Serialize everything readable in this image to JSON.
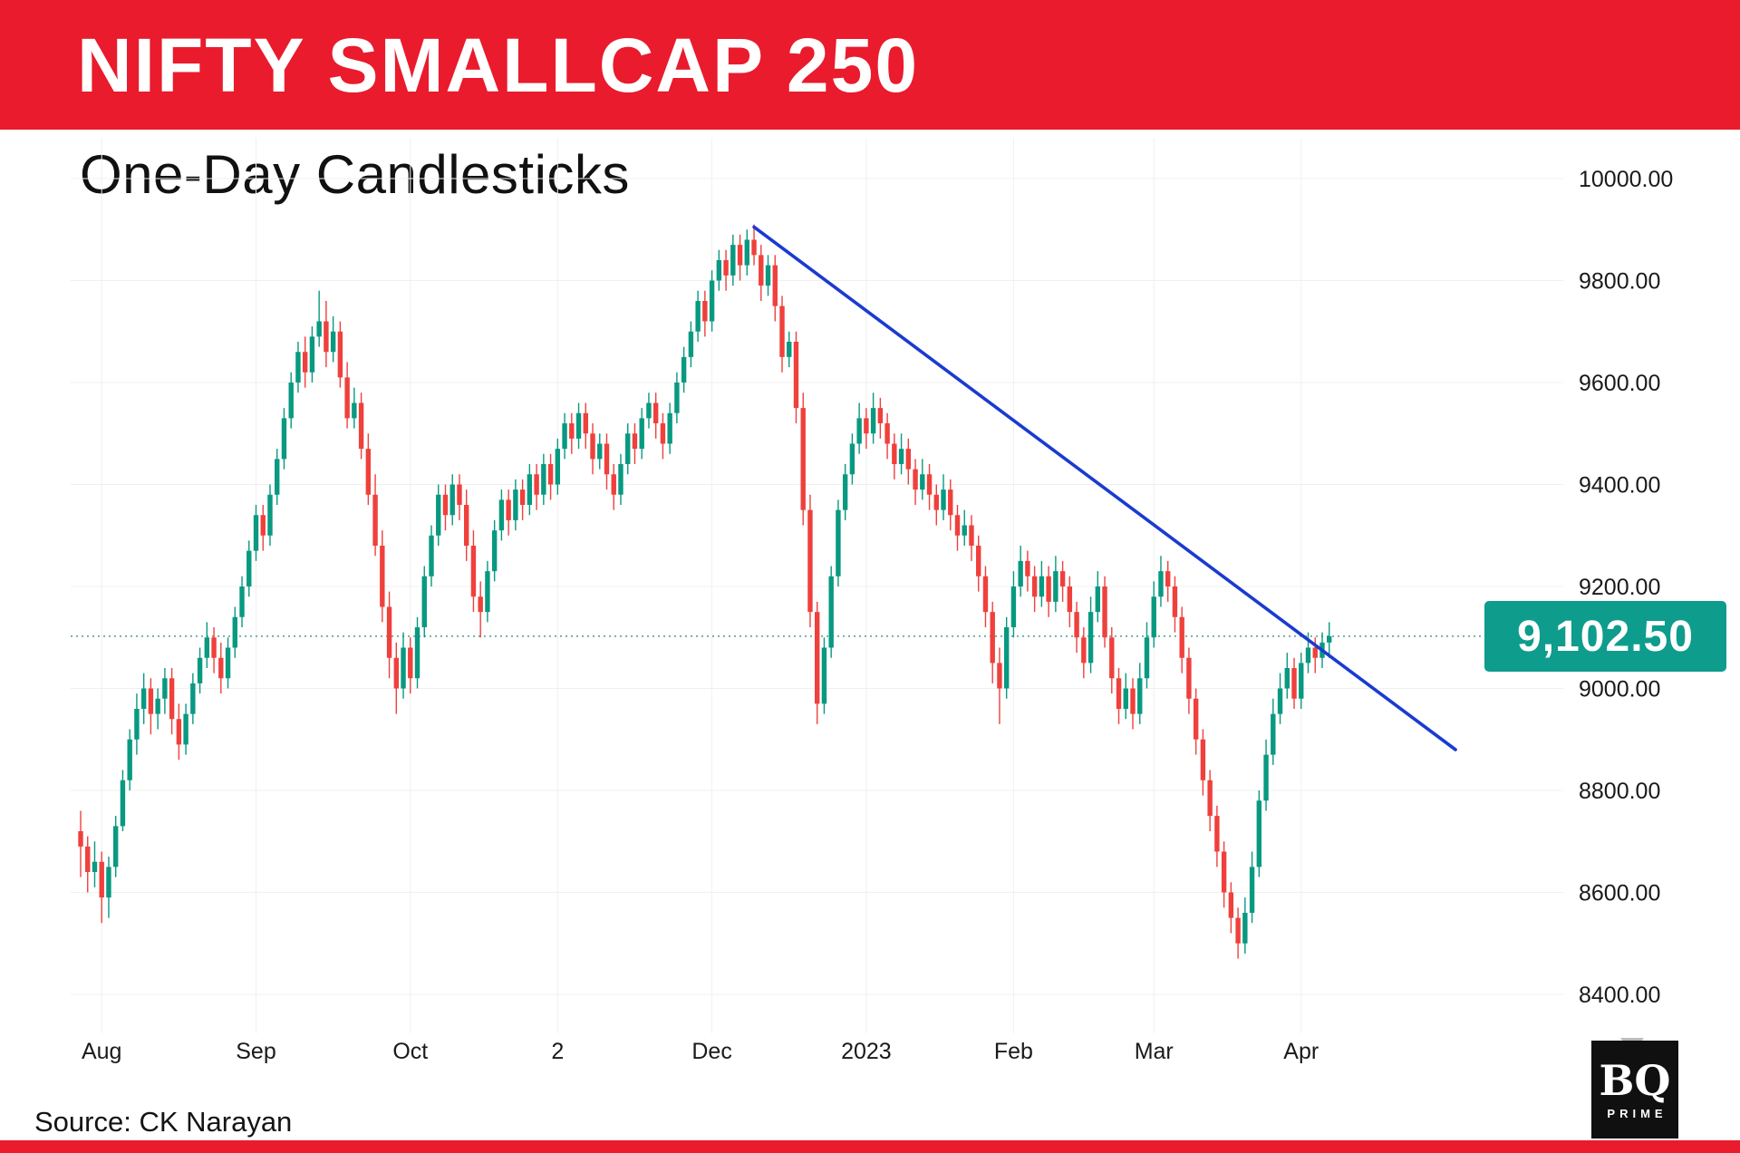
{
  "header": {
    "title": "NIFTY SMALLCAP 250",
    "bg_color": "#e91b2d",
    "text_color": "#ffffff"
  },
  "subtitle": "One-Day Candlesticks",
  "source": "Source: CK Narayan",
  "logo": {
    "line1": "BQ",
    "line2": "PRIME"
  },
  "price_label": {
    "text": "9,102.50",
    "value": 9102.5,
    "bg_color": "#0e9c8d",
    "text_color": "#ffffff"
  },
  "chart_data": {
    "type": "candlestick",
    "title": "NIFTY SMALLCAP 250",
    "subtitle": "One-Day Candlesticks",
    "interval": "1 day",
    "last_price": 9102.5,
    "ylim": [
      8320,
      10100
    ],
    "xlim_days": [
      0,
      210
    ],
    "grid": true,
    "up_color": "#089981",
    "down_color": "#ef403c",
    "grid_color": "#f0f0f0",
    "axis_text_color": "#1a1a1a",
    "y_ticks": [
      {
        "v": 10000,
        "label": "10000.00"
      },
      {
        "v": 9800,
        "label": "9800.00"
      },
      {
        "v": 9600,
        "label": "9600.00"
      },
      {
        "v": 9400,
        "label": "9400.00"
      },
      {
        "v": 9200,
        "label": "9200.00"
      },
      {
        "v": 9000,
        "label": "9000.00"
      },
      {
        "v": 8800,
        "label": "8800.00"
      },
      {
        "v": 8600,
        "label": "8600.00"
      },
      {
        "v": 8400,
        "label": "8400.00"
      }
    ],
    "x_labels": [
      {
        "label": "Aug",
        "day": 3
      },
      {
        "label": "Sep",
        "day": 25
      },
      {
        "label": "Oct",
        "day": 47
      },
      {
        "label": "2",
        "day": 68
      },
      {
        "label": "Dec",
        "day": 90
      },
      {
        "label": "2023",
        "day": 112
      },
      {
        "label": "Feb",
        "day": 133
      },
      {
        "label": "Mar",
        "day": 153
      },
      {
        "label": "Apr",
        "day": 174
      }
    ],
    "trendline": {
      "from": {
        "day": 96,
        "value": 9905
      },
      "to": {
        "day": 196,
        "value": 8880
      },
      "color": "#1a3bd0"
    },
    "reference_line": {
      "value": 9102.5,
      "color": "#2a8c7a",
      "style": "dotted"
    },
    "candles": [
      [
        8720,
        8760,
        8630,
        8690
      ],
      [
        8690,
        8710,
        8600,
        8640
      ],
      [
        8640,
        8700,
        8610,
        8660
      ],
      [
        8660,
        8680,
        8540,
        8590
      ],
      [
        8590,
        8670,
        8550,
        8650
      ],
      [
        8650,
        8750,
        8630,
        8730
      ],
      [
        8730,
        8840,
        8720,
        8820
      ],
      [
        8820,
        8920,
        8800,
        8900
      ],
      [
        8900,
        8990,
        8870,
        8960
      ],
      [
        8960,
        9030,
        8930,
        9000
      ],
      [
        9000,
        9020,
        8910,
        8950
      ],
      [
        8950,
        9000,
        8920,
        8980
      ],
      [
        8980,
        9040,
        8950,
        9020
      ],
      [
        9020,
        9040,
        8910,
        8940
      ],
      [
        8940,
        8970,
        8860,
        8890
      ],
      [
        8890,
        8970,
        8870,
        8950
      ],
      [
        8950,
        9030,
        8930,
        9010
      ],
      [
        9010,
        9080,
        8990,
        9060
      ],
      [
        9060,
        9130,
        9040,
        9100
      ],
      [
        9100,
        9120,
        9030,
        9060
      ],
      [
        9060,
        9090,
        8990,
        9020
      ],
      [
        9020,
        9100,
        9000,
        9080
      ],
      [
        9080,
        9160,
        9060,
        9140
      ],
      [
        9140,
        9220,
        9120,
        9200
      ],
      [
        9200,
        9290,
        9180,
        9270
      ],
      [
        9270,
        9360,
        9250,
        9340
      ],
      [
        9340,
        9360,
        9270,
        9300
      ],
      [
        9300,
        9400,
        9280,
        9380
      ],
      [
        9380,
        9470,
        9360,
        9450
      ],
      [
        9450,
        9550,
        9430,
        9530
      ],
      [
        9530,
        9620,
        9510,
        9600
      ],
      [
        9600,
        9680,
        9580,
        9660
      ],
      [
        9660,
        9690,
        9590,
        9620
      ],
      [
        9620,
        9710,
        9600,
        9690
      ],
      [
        9690,
        9780,
        9670,
        9720
      ],
      [
        9720,
        9760,
        9630,
        9660
      ],
      [
        9660,
        9730,
        9640,
        9700
      ],
      [
        9700,
        9720,
        9590,
        9610
      ],
      [
        9610,
        9640,
        9510,
        9530
      ],
      [
        9530,
        9590,
        9510,
        9560
      ],
      [
        9560,
        9580,
        9450,
        9470
      ],
      [
        9470,
        9500,
        9360,
        9380
      ],
      [
        9380,
        9420,
        9260,
        9280
      ],
      [
        9280,
        9310,
        9130,
        9160
      ],
      [
        9160,
        9190,
        9020,
        9060
      ],
      [
        9060,
        9090,
        8950,
        9000
      ],
      [
        9000,
        9110,
        8980,
        9080
      ],
      [
        9080,
        9100,
        8990,
        9020
      ],
      [
        9020,
        9140,
        9000,
        9120
      ],
      [
        9120,
        9240,
        9100,
        9220
      ],
      [
        9220,
        9320,
        9200,
        9300
      ],
      [
        9300,
        9400,
        9280,
        9380
      ],
      [
        9380,
        9400,
        9310,
        9340
      ],
      [
        9340,
        9420,
        9320,
        9400
      ],
      [
        9400,
        9420,
        9330,
        9360
      ],
      [
        9360,
        9390,
        9250,
        9280
      ],
      [
        9280,
        9310,
        9150,
        9180
      ],
      [
        9180,
        9210,
        9100,
        9150
      ],
      [
        9150,
        9250,
        9130,
        9230
      ],
      [
        9230,
        9330,
        9210,
        9310
      ],
      [
        9310,
        9390,
        9290,
        9370
      ],
      [
        9370,
        9390,
        9300,
        9330
      ],
      [
        9330,
        9410,
        9310,
        9390
      ],
      [
        9390,
        9410,
        9330,
        9360
      ],
      [
        9360,
        9440,
        9340,
        9420
      ],
      [
        9420,
        9440,
        9350,
        9380
      ],
      [
        9380,
        9460,
        9360,
        9440
      ],
      [
        9440,
        9460,
        9370,
        9400
      ],
      [
        9400,
        9490,
        9380,
        9470
      ],
      [
        9470,
        9540,
        9450,
        9520
      ],
      [
        9520,
        9540,
        9460,
        9490
      ],
      [
        9490,
        9560,
        9470,
        9540
      ],
      [
        9540,
        9560,
        9470,
        9500
      ],
      [
        9500,
        9520,
        9420,
        9450
      ],
      [
        9450,
        9500,
        9430,
        9480
      ],
      [
        9480,
        9500,
        9390,
        9420
      ],
      [
        9420,
        9440,
        9350,
        9380
      ],
      [
        9380,
        9460,
        9360,
        9440
      ],
      [
        9440,
        9520,
        9420,
        9500
      ],
      [
        9500,
        9520,
        9440,
        9470
      ],
      [
        9470,
        9550,
        9450,
        9530
      ],
      [
        9530,
        9580,
        9510,
        9560
      ],
      [
        9560,
        9580,
        9490,
        9520
      ],
      [
        9520,
        9540,
        9450,
        9480
      ],
      [
        9480,
        9560,
        9460,
        9540
      ],
      [
        9540,
        9620,
        9520,
        9600
      ],
      [
        9600,
        9670,
        9580,
        9650
      ],
      [
        9650,
        9720,
        9630,
        9700
      ],
      [
        9700,
        9780,
        9680,
        9760
      ],
      [
        9760,
        9780,
        9690,
        9720
      ],
      [
        9720,
        9820,
        9700,
        9800
      ],
      [
        9800,
        9860,
        9780,
        9840
      ],
      [
        9840,
        9860,
        9780,
        9810
      ],
      [
        9810,
        9890,
        9790,
        9870
      ],
      [
        9870,
        9890,
        9800,
        9830
      ],
      [
        9830,
        9900,
        9810,
        9880
      ],
      [
        9880,
        9910,
        9830,
        9850
      ],
      [
        9850,
        9870,
        9760,
        9790
      ],
      [
        9790,
        9850,
        9770,
        9830
      ],
      [
        9830,
        9850,
        9720,
        9750
      ],
      [
        9750,
        9770,
        9620,
        9650
      ],
      [
        9650,
        9700,
        9630,
        9680
      ],
      [
        9680,
        9700,
        9520,
        9550
      ],
      [
        9550,
        9580,
        9320,
        9350
      ],
      [
        9350,
        9380,
        9120,
        9150
      ],
      [
        9150,
        9170,
        8930,
        8970
      ],
      [
        8970,
        9100,
        8950,
        9080
      ],
      [
        9080,
        9240,
        9060,
        9220
      ],
      [
        9220,
        9370,
        9200,
        9350
      ],
      [
        9350,
        9440,
        9330,
        9420
      ],
      [
        9420,
        9500,
        9400,
        9480
      ],
      [
        9480,
        9560,
        9460,
        9530
      ],
      [
        9530,
        9550,
        9470,
        9500
      ],
      [
        9500,
        9580,
        9480,
        9550
      ],
      [
        9550,
        9570,
        9490,
        9520
      ],
      [
        9520,
        9540,
        9450,
        9480
      ],
      [
        9480,
        9500,
        9410,
        9440
      ],
      [
        9440,
        9500,
        9420,
        9470
      ],
      [
        9470,
        9490,
        9400,
        9430
      ],
      [
        9430,
        9450,
        9360,
        9390
      ],
      [
        9390,
        9450,
        9370,
        9420
      ],
      [
        9420,
        9440,
        9350,
        9380
      ],
      [
        9380,
        9400,
        9320,
        9350
      ],
      [
        9350,
        9420,
        9330,
        9390
      ],
      [
        9390,
        9410,
        9310,
        9340
      ],
      [
        9340,
        9360,
        9270,
        9300
      ],
      [
        9300,
        9350,
        9280,
        9320
      ],
      [
        9320,
        9340,
        9250,
        9280
      ],
      [
        9280,
        9300,
        9190,
        9220
      ],
      [
        9220,
        9240,
        9120,
        9150
      ],
      [
        9150,
        9170,
        9010,
        9050
      ],
      [
        9050,
        9080,
        8930,
        9000
      ],
      [
        9000,
        9140,
        8980,
        9120
      ],
      [
        9120,
        9230,
        9100,
        9200
      ],
      [
        9200,
        9280,
        9180,
        9250
      ],
      [
        9250,
        9270,
        9190,
        9220
      ],
      [
        9220,
        9240,
        9150,
        9180
      ],
      [
        9180,
        9250,
        9160,
        9220
      ],
      [
        9220,
        9240,
        9140,
        9170
      ],
      [
        9170,
        9260,
        9150,
        9230
      ],
      [
        9230,
        9250,
        9170,
        9200
      ],
      [
        9200,
        9220,
        9120,
        9150
      ],
      [
        9150,
        9170,
        9070,
        9100
      ],
      [
        9100,
        9120,
        9020,
        9050
      ],
      [
        9050,
        9180,
        9030,
        9150
      ],
      [
        9150,
        9230,
        9130,
        9200
      ],
      [
        9200,
        9220,
        9080,
        9100
      ],
      [
        9100,
        9120,
        8990,
        9020
      ],
      [
        9020,
        9040,
        8930,
        8960
      ],
      [
        8960,
        9030,
        8940,
        9000
      ],
      [
        9000,
        9020,
        8920,
        8950
      ],
      [
        8950,
        9050,
        8930,
        9020
      ],
      [
        9020,
        9130,
        9000,
        9100
      ],
      [
        9100,
        9210,
        9080,
        9180
      ],
      [
        9180,
        9260,
        9160,
        9230
      ],
      [
        9230,
        9250,
        9170,
        9200
      ],
      [
        9200,
        9220,
        9110,
        9140
      ],
      [
        9140,
        9160,
        9030,
        9060
      ],
      [
        9060,
        9080,
        8950,
        8980
      ],
      [
        8980,
        9000,
        8870,
        8900
      ],
      [
        8900,
        8920,
        8790,
        8820
      ],
      [
        8820,
        8840,
        8720,
        8750
      ],
      [
        8750,
        8770,
        8650,
        8680
      ],
      [
        8680,
        8700,
        8570,
        8600
      ],
      [
        8600,
        8620,
        8520,
        8550
      ],
      [
        8550,
        8570,
        8470,
        8500
      ],
      [
        8500,
        8590,
        8480,
        8560
      ],
      [
        8560,
        8680,
        8540,
        8650
      ],
      [
        8650,
        8800,
        8630,
        8780
      ],
      [
        8780,
        8900,
        8760,
        8870
      ],
      [
        8870,
        8980,
        8850,
        8950
      ],
      [
        8950,
        9030,
        8930,
        9000
      ],
      [
        9000,
        9070,
        8980,
        9040
      ],
      [
        9040,
        9060,
        8960,
        8980
      ],
      [
        8980,
        9070,
        8960,
        9050
      ],
      [
        9050,
        9110,
        9030,
        9080
      ],
      [
        9080,
        9100,
        9030,
        9060
      ],
      [
        9060,
        9110,
        9040,
        9090
      ],
      [
        9090,
        9130,
        9060,
        9102.5
      ]
    ]
  }
}
